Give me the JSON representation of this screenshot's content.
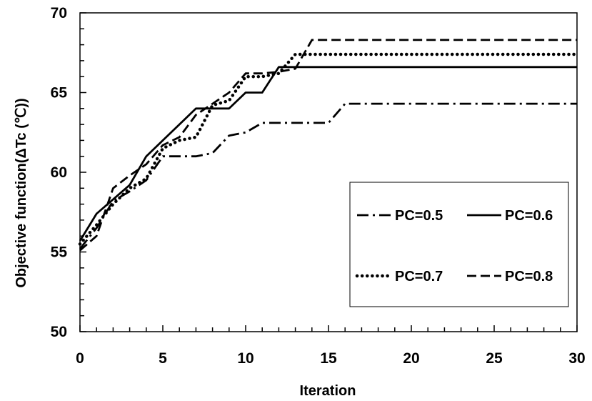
{
  "chart_data": {
    "type": "line",
    "xlabel": "Iteration",
    "ylabel": "Objective function(ΔTc (℃))",
    "xlim": [
      0,
      30
    ],
    "ylim": [
      50,
      70
    ],
    "xticks": [
      0,
      5,
      10,
      15,
      20,
      25,
      30
    ],
    "yticks": [
      50,
      55,
      60,
      65,
      70
    ],
    "grid": false,
    "legend_position": "bottom-right",
    "series": [
      {
        "name": "PC=0.5",
        "line_style": "dash-dot",
        "x": [
          0,
          1,
          2,
          3,
          4,
          5,
          6,
          7,
          8,
          9,
          10,
          11,
          12,
          13,
          14,
          15,
          16,
          30
        ],
        "y": [
          55.2,
          56.5,
          58.2,
          58.8,
          59.5,
          61.0,
          61.0,
          61.0,
          61.2,
          62.3,
          62.5,
          63.1,
          63.1,
          63.1,
          63.1,
          63.1,
          64.3,
          64.3
        ]
      },
      {
        "name": "PC=0.6",
        "line_style": "solid",
        "x": [
          0,
          1,
          2,
          3,
          4,
          5,
          6,
          7,
          8,
          9,
          10,
          11,
          12,
          13,
          30
        ],
        "y": [
          55.7,
          57.4,
          58.3,
          59.2,
          61.0,
          62.0,
          63.0,
          64.0,
          64.0,
          64.0,
          65.0,
          65.0,
          66.6,
          66.6,
          66.6
        ]
      },
      {
        "name": "PC=0.7",
        "line_style": "dotted",
        "x": [
          0,
          1,
          2,
          3,
          4,
          5,
          6,
          7,
          8,
          9,
          10,
          11,
          12,
          13,
          30
        ],
        "y": [
          55.5,
          56.7,
          58.0,
          59.0,
          59.6,
          61.5,
          62.0,
          62.2,
          64.2,
          64.5,
          66.0,
          66.0,
          66.2,
          67.4,
          67.4
        ]
      },
      {
        "name": "PC=0.8",
        "line_style": "dashed",
        "x": [
          0,
          1,
          2,
          3,
          4,
          5,
          6,
          7,
          8,
          9,
          10,
          11,
          12,
          13,
          14,
          30
        ],
        "y": [
          55.1,
          56.0,
          59.0,
          59.8,
          60.5,
          61.7,
          62.2,
          63.6,
          64.3,
          65.0,
          66.2,
          66.2,
          66.3,
          66.5,
          68.3,
          68.3
        ]
      }
    ]
  }
}
